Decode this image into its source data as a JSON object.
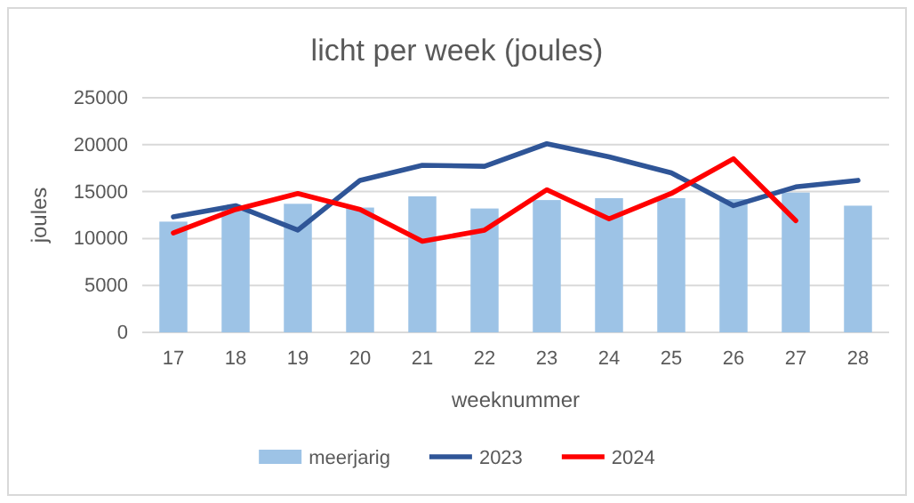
{
  "chart_data": {
    "type": "bar",
    "title": "licht per week (joules)",
    "xlabel": "weeknummer",
    "ylabel": "joules",
    "categories": [
      "17",
      "18",
      "19",
      "20",
      "21",
      "22",
      "23",
      "24",
      "25",
      "26",
      "27",
      "28"
    ],
    "series": [
      {
        "name": "meerjarig",
        "color": "#9dc3e6",
        "values": [
          11800,
          13100,
          13700,
          13300,
          14500,
          13200,
          14100,
          14300,
          14300,
          14200,
          14900,
          13500
        ]
      },
      {
        "name": "2023",
        "type": "line",
        "color": "#2f5597",
        "values": [
          12300,
          13500,
          10900,
          16200,
          17800,
          17700,
          20100,
          18700,
          17000,
          13500,
          15500,
          16200
        ]
      },
      {
        "name": "2024",
        "type": "line",
        "color": "#ff0000",
        "values": [
          10600,
          13100,
          14800,
          13100,
          9700,
          10900,
          15200,
          12100,
          14800,
          18500,
          11900,
          null
        ]
      }
    ],
    "ylim": [
      0,
      25000
    ],
    "yticks": [
      0,
      5000,
      10000,
      15000,
      20000,
      25000
    ],
    "grid": "y",
    "legend": "bottom"
  }
}
